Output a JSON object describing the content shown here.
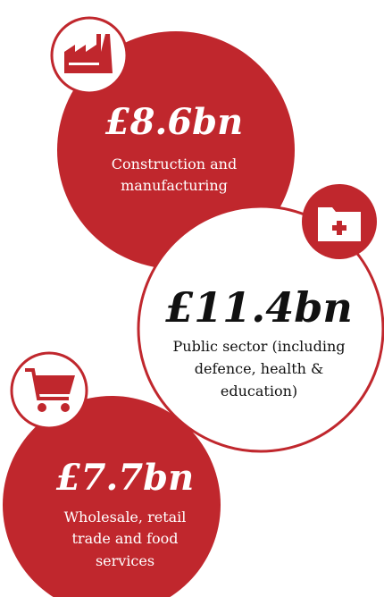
{
  "items": [
    {
      "value": "£8.6bn",
      "label": [
        "Construction and",
        "manufacturing"
      ]
    },
    {
      "value": "£11.4bn",
      "label": [
        "Public sector (including",
        "defence, health &",
        "education)"
      ]
    },
    {
      "value": "£7.7bn",
      "label": [
        "Wholesale, retail",
        "trade and food",
        "services"
      ]
    }
  ]
}
